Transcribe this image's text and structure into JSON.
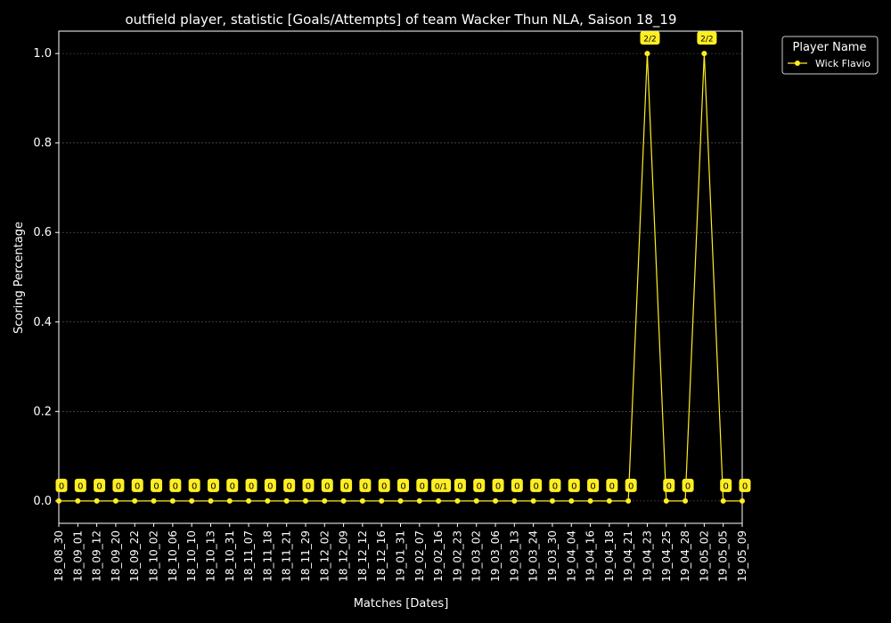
{
  "chart_data": {
    "type": "line",
    "title": "outfield player, statistic [Goals/Attempts] of team Wacker Thun NLA, Saison 18_19",
    "xlabel": "Matches [Dates]",
    "ylabel": "Scoring Percentage",
    "ylim": [
      -0.05,
      1.05
    ],
    "yticks": [
      0.0,
      0.2,
      0.4,
      0.6,
      0.8,
      1.0
    ],
    "ytick_labels": [
      "0.0",
      "0.2",
      "0.4",
      "0.6",
      "0.8",
      "1.0"
    ],
    "grid": "horizontal dashed",
    "categories": [
      "18_08_30",
      "18_09_01",
      "18_09_12",
      "18_09_20",
      "18_09_22",
      "18_10_02",
      "18_10_06",
      "18_10_10",
      "18_10_13",
      "18_10_31",
      "18_11_07",
      "18_11_18",
      "18_11_21",
      "18_11_29",
      "18_12_02",
      "18_12_09",
      "18_12_12",
      "18_12_16",
      "19_01_31",
      "19_02_07",
      "19_02_16",
      "19_02_23",
      "19_03_02",
      "19_03_06",
      "19_03_13",
      "19_03_24",
      "19_03_30",
      "19_04_04",
      "19_04_16",
      "19_04_18",
      "19_04_21",
      "19_04_23",
      "19_04_25",
      "19_04_28",
      "19_05_02",
      "19_05_05",
      "19_05_09"
    ],
    "series": [
      {
        "name": "Wick Flavio",
        "color": "#ffee22",
        "values": [
          0,
          0,
          0,
          0,
          0,
          0,
          0,
          0,
          0,
          0,
          0,
          0,
          0,
          0,
          0,
          0,
          0,
          0,
          0,
          0,
          0,
          0,
          0,
          0,
          0,
          0,
          0,
          0,
          0,
          0,
          0,
          1,
          0,
          0,
          1,
          0,
          0
        ],
        "labels": [
          "0",
          "0",
          "0",
          "0",
          "0",
          "0",
          "0",
          "0",
          "0",
          "0",
          "0",
          "0",
          "0",
          "0",
          "0",
          "0",
          "0",
          "0",
          "0",
          "0",
          "0/1",
          "0",
          "0",
          "0",
          "0",
          "0",
          "0",
          "0",
          "0",
          "0",
          "0",
          "2/2",
          "0",
          "0",
          "2/2",
          "0",
          "0"
        ]
      }
    ],
    "legend": {
      "title": "Player Name",
      "placement": "outside-top-right"
    }
  }
}
